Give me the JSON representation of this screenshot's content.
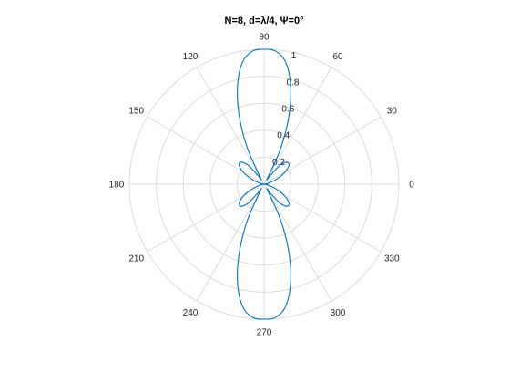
{
  "chart_data": {
    "type": "line",
    "subtype": "polar",
    "title": "N=8, d=λ/4, Ψ=0°",
    "theta_ticks_deg": [
      0,
      30,
      60,
      90,
      120,
      150,
      180,
      210,
      240,
      270,
      300,
      330
    ],
    "theta_tick_labels": [
      "0",
      "30",
      "60",
      "90",
      "120",
      "150",
      "180",
      "210",
      "240",
      "270",
      "300",
      "330"
    ],
    "r_ticks": [
      0.2,
      0.4,
      0.6,
      0.8,
      1
    ],
    "r_tick_labels": [
      "0.2",
      "0.4",
      "0.6",
      "0.8",
      "1"
    ],
    "rlim": [
      0,
      1
    ],
    "grid": true,
    "legend": "none",
    "colors": {
      "series": "#0072bd",
      "grid": "#dcdcdc",
      "text": "#262626"
    },
    "series": [
      {
        "theta_deg": [
          0,
          5,
          10,
          15,
          20,
          25,
          30,
          35,
          40,
          45,
          50,
          55,
          60,
          65,
          70,
          75,
          80,
          85,
          90,
          95,
          100,
          105,
          110,
          115,
          120,
          125,
          130,
          135,
          140,
          145,
          150,
          155,
          160,
          165,
          170,
          175,
          180,
          185,
          190,
          195,
          200,
          205,
          210,
          215,
          220,
          225,
          230,
          235,
          240,
          245,
          250,
          255,
          260,
          265,
          270,
          275,
          280,
          285,
          290,
          295,
          300,
          305,
          310,
          315,
          320,
          325,
          330,
          335,
          340,
          345,
          350,
          355,
          360
        ],
        "r": [
          0.0,
          0.0,
          0.02,
          0.04,
          0.08,
          0.13,
          0.18,
          0.22,
          0.24,
          0.23,
          0.18,
          0.08,
          0.05,
          0.29,
          0.54,
          0.76,
          0.92,
          0.99,
          1.0,
          0.99,
          0.92,
          0.76,
          0.54,
          0.29,
          0.05,
          0.08,
          0.18,
          0.23,
          0.24,
          0.22,
          0.18,
          0.13,
          0.08,
          0.04,
          0.02,
          0.0,
          0.0,
          0.0,
          0.02,
          0.04,
          0.08,
          0.13,
          0.18,
          0.22,
          0.24,
          0.23,
          0.18,
          0.08,
          0.05,
          0.29,
          0.54,
          0.76,
          0.92,
          0.99,
          1.0,
          0.99,
          0.92,
          0.76,
          0.54,
          0.29,
          0.05,
          0.08,
          0.18,
          0.23,
          0.24,
          0.22,
          0.18,
          0.13,
          0.08,
          0.04,
          0.02,
          0.0,
          0.0
        ]
      }
    ]
  }
}
